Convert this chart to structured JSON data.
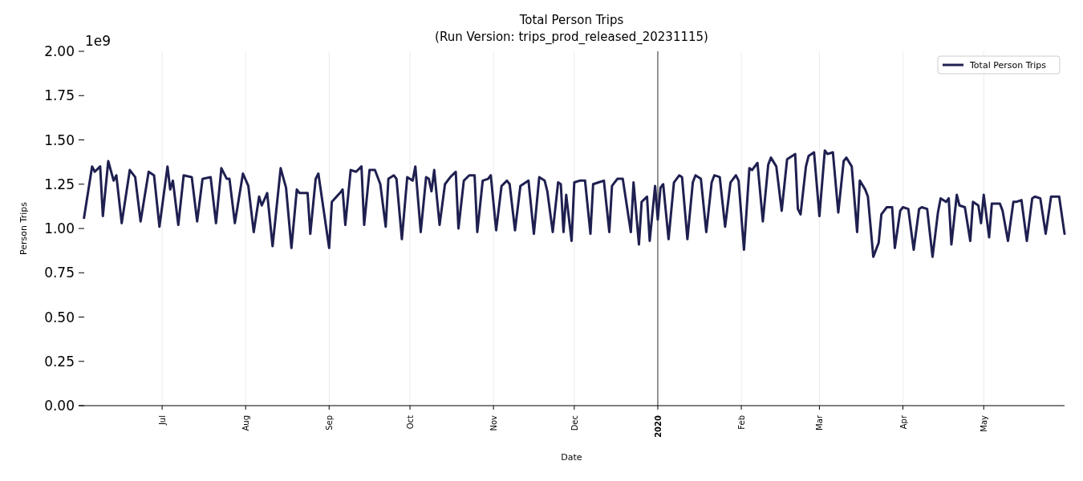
{
  "chart_data": {
    "type": "line",
    "title": "Total Person Trips",
    "subtitle": "(Run Version: trips_prod_released_20231115)",
    "xlabel": "Date",
    "ylabel": "Person Trips",
    "annotations": [
      "1e9"
    ],
    "xlim": [
      "2019-05-31",
      "2020-05-31"
    ],
    "ylim": [
      0,
      2
    ],
    "xticks": [
      {
        "value": "2019-07-01",
        "label": "Jul"
      },
      {
        "value": "2019-08-01",
        "label": "Aug"
      },
      {
        "value": "2019-09-01",
        "label": "Sep"
      },
      {
        "value": "2019-10-01",
        "label": "Oct"
      },
      {
        "value": "2019-11-01",
        "label": "Nov"
      },
      {
        "value": "2019-12-01",
        "label": "Dec"
      },
      {
        "value": "2020-01-01",
        "label": "2020"
      },
      {
        "value": "2020-02-01",
        "label": "Feb"
      },
      {
        "value": "2020-03-01",
        "label": "Mar"
      },
      {
        "value": "2020-04-01",
        "label": "Apr"
      },
      {
        "value": "2020-05-01",
        "label": "May"
      }
    ],
    "yticks": [
      {
        "value": 0,
        "label": "0.00"
      },
      {
        "value": 0.25,
        "label": "0.25"
      },
      {
        "value": 0.5,
        "label": "0.50"
      },
      {
        "value": 0.75,
        "label": "0.75"
      },
      {
        "value": 1,
        "label": "1.00"
      },
      {
        "value": 1.25,
        "label": "1.25"
      },
      {
        "value": 1.5,
        "label": "1.50"
      },
      {
        "value": 1.75,
        "label": "1.75"
      },
      {
        "value": 2,
        "label": "2.00"
      }
    ],
    "grid": "x",
    "legend": "top right",
    "line_style": "solid",
    "ref_lines": [
      {
        "axis": "x",
        "value": "2020-01-01",
        "color": "#333333"
      }
    ],
    "series": [
      {
        "name": "Total Person Trips",
        "color": "#1f2050",
        "x": [
          "2019-06-02",
          "2019-06-05",
          "2019-06-06",
          "2019-06-08",
          "2019-06-09",
          "2019-06-11",
          "2019-06-13",
          "2019-06-14",
          "2019-06-16",
          "2019-06-19",
          "2019-06-21",
          "2019-06-23",
          "2019-06-26",
          "2019-06-28",
          "2019-06-30",
          "2019-07-03",
          "2019-07-04",
          "2019-07-05",
          "2019-07-07",
          "2019-07-09",
          "2019-07-12",
          "2019-07-14",
          "2019-07-16",
          "2019-07-19",
          "2019-07-21",
          "2019-07-23",
          "2019-07-25",
          "2019-07-26",
          "2019-07-28",
          "2019-07-31",
          "2019-08-02",
          "2019-08-04",
          "2019-08-06",
          "2019-08-07",
          "2019-08-09",
          "2019-08-11",
          "2019-08-14",
          "2019-08-16",
          "2019-08-18",
          "2019-08-20",
          "2019-08-21",
          "2019-08-24",
          "2019-08-25",
          "2019-08-27",
          "2019-08-28",
          "2019-09-01",
          "2019-09-02",
          "2019-09-05",
          "2019-09-06",
          "2019-09-07",
          "2019-09-09",
          "2019-09-11",
          "2019-09-13",
          "2019-09-14",
          "2019-09-16",
          "2019-09-18",
          "2019-09-20",
          "2019-09-22",
          "2019-09-23",
          "2019-09-25",
          "2019-09-26",
          "2019-09-28",
          "2019-09-30",
          "2019-10-02",
          "2019-10-03",
          "2019-10-05",
          "2019-10-07",
          "2019-10-08",
          "2019-10-09",
          "2019-10-10",
          "2019-10-12",
          "2019-10-14",
          "2019-10-16",
          "2019-10-18",
          "2019-10-19",
          "2019-10-21",
          "2019-10-23",
          "2019-10-25",
          "2019-10-26",
          "2019-10-28",
          "2019-10-30",
          "2019-10-31",
          "2019-11-02",
          "2019-11-04",
          "2019-11-06",
          "2019-11-07",
          "2019-11-09",
          "2019-11-11",
          "2019-11-13",
          "2019-11-14",
          "2019-11-16",
          "2019-11-18",
          "2019-11-20",
          "2019-11-21",
          "2019-11-23",
          "2019-11-25",
          "2019-11-26",
          "2019-11-27",
          "2019-11-28",
          "2019-11-30",
          "2019-12-01",
          "2019-12-03",
          "2019-12-05",
          "2019-12-07",
          "2019-12-08",
          "2019-12-10",
          "2019-12-12",
          "2019-12-14",
          "2019-12-15",
          "2019-12-17",
          "2019-12-19",
          "2019-12-22",
          "2019-12-23",
          "2019-12-25",
          "2019-12-26",
          "2019-12-28",
          "2019-12-29",
          "2019-12-31",
          "2020-01-01",
          "2020-01-02",
          "2020-01-03",
          "2020-01-05",
          "2020-01-07",
          "2020-01-09",
          "2020-01-10",
          "2020-01-12",
          "2020-01-14",
          "2020-01-15",
          "2020-01-17",
          "2020-01-19",
          "2020-01-21",
          "2020-01-22",
          "2020-01-24",
          "2020-01-26",
          "2020-01-28",
          "2020-01-30",
          "2020-01-31",
          "2020-02-02",
          "2020-02-04",
          "2020-02-05",
          "2020-02-07",
          "2020-02-09",
          "2020-02-11",
          "2020-02-12",
          "2020-02-14",
          "2020-02-16",
          "2020-02-18",
          "2020-02-19",
          "2020-02-21",
          "2020-02-22",
          "2020-02-23",
          "2020-02-25",
          "2020-02-26",
          "2020-02-28",
          "2020-03-01",
          "2020-03-03",
          "2020-03-04",
          "2020-03-06",
          "2020-03-08",
          "2020-03-10",
          "2020-03-11",
          "2020-03-13",
          "2020-03-15",
          "2020-03-16",
          "2020-03-18",
          "2020-03-19",
          "2020-03-21",
          "2020-03-23",
          "2020-03-24",
          "2020-03-26",
          "2020-03-28",
          "2020-03-29",
          "2020-03-31",
          "2020-04-01",
          "2020-04-03",
          "2020-04-05",
          "2020-04-07",
          "2020-04-08",
          "2020-04-10",
          "2020-04-12",
          "2020-04-14",
          "2020-04-15",
          "2020-04-17",
          "2020-04-18",
          "2020-04-19",
          "2020-04-21",
          "2020-04-22",
          "2020-04-24",
          "2020-04-26",
          "2020-04-27",
          "2020-04-29",
          "2020-04-30",
          "2020-05-01",
          "2020-05-03",
          "2020-05-04",
          "2020-05-07",
          "2020-05-08",
          "2020-05-10",
          "2020-05-12",
          "2020-05-13",
          "2020-05-15",
          "2020-05-17",
          "2020-05-19",
          "2020-05-20",
          "2020-05-22",
          "2020-05-24",
          "2020-05-26",
          "2020-05-27",
          "2020-05-29",
          "2020-05-31"
        ],
        "values": [
          1.06,
          1.35,
          1.32,
          1.35,
          1.07,
          1.38,
          1.27,
          1.3,
          1.03,
          1.33,
          1.29,
          1.04,
          1.32,
          1.3,
          1.01,
          1.35,
          1.22,
          1.27,
          1.02,
          1.3,
          1.29,
          1.04,
          1.28,
          1.29,
          1.03,
          1.34,
          1.28,
          1.28,
          1.03,
          1.31,
          1.24,
          0.98,
          1.18,
          1.13,
          1.2,
          0.9,
          1.34,
          1.23,
          0.89,
          1.22,
          1.2,
          1.2,
          0.97,
          1.28,
          1.31,
          0.89,
          1.15,
          1.2,
          1.22,
          1.02,
          1.33,
          1.32,
          1.35,
          1.02,
          1.33,
          1.33,
          1.25,
          1.01,
          1.28,
          1.3,
          1.28,
          0.94,
          1.29,
          1.27,
          1.35,
          0.98,
          1.29,
          1.28,
          1.21,
          1.33,
          1.02,
          1.25,
          1.29,
          1.32,
          1.0,
          1.27,
          1.3,
          1.3,
          0.98,
          1.27,
          1.28,
          1.3,
          0.99,
          1.24,
          1.27,
          1.25,
          0.99,
          1.24,
          1.26,
          1.27,
          0.97,
          1.29,
          1.27,
          1.21,
          0.98,
          1.26,
          1.25,
          0.98,
          1.19,
          0.93,
          1.26,
          1.27,
          1.27,
          0.97,
          1.25,
          1.26,
          1.27,
          0.98,
          1.24,
          1.28,
          1.28,
          0.98,
          1.26,
          0.91,
          1.15,
          1.18,
          0.93,
          1.24,
          1.05,
          1.23,
          1.25,
          0.94,
          1.26,
          1.3,
          1.29,
          0.94,
          1.26,
          1.3,
          1.28,
          0.98,
          1.26,
          1.3,
          1.29,
          1.01,
          1.26,
          1.3,
          1.27,
          0.88,
          1.34,
          1.33,
          1.37,
          1.04,
          1.36,
          1.4,
          1.35,
          1.1,
          1.39,
          1.4,
          1.42,
          1.11,
          1.08,
          1.35,
          1.41,
          1.43,
          1.07,
          1.44,
          1.42,
          1.43,
          1.09,
          1.38,
          1.4,
          1.35,
          0.98,
          1.27,
          1.22,
          1.18,
          0.84,
          0.92,
          1.08,
          1.12,
          1.12,
          0.89,
          1.1,
          1.12,
          1.11,
          0.88,
          1.11,
          1.12,
          1.11,
          0.84,
          1.09,
          1.17,
          1.15,
          1.17,
          0.91,
          1.19,
          1.13,
          1.12,
          0.93,
          1.15,
          1.13,
          1.03,
          1.19,
          0.95,
          1.14,
          1.14,
          1.1,
          0.93,
          1.15,
          1.15,
          1.16,
          0.93,
          1.17,
          1.18,
          1.17,
          0.97,
          1.18,
          1.18,
          1.18,
          0.97
        ]
      }
    ]
  }
}
